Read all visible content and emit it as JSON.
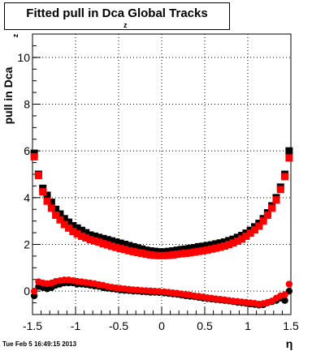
{
  "header": {
    "title": "Fitted pull in Dca",
    "title_sub": "z",
    "title_tail": " Global Tracks"
  },
  "footer": {
    "timestamp": "Tue Feb  5 16:49:15 2013"
  },
  "chart_data": {
    "type": "scatter",
    "title": "Fitted pull in Dca_z Global Tracks",
    "xlabel": "η",
    "ylabel": "pull in Dca",
    "ylabel_sub": "z",
    "xlim": [
      -1.5,
      1.5
    ],
    "ylim": [
      -1.0,
      11.0
    ],
    "x_ticks": [
      -1.5,
      -1,
      -0.5,
      0,
      0.5,
      1,
      1.5
    ],
    "x_tick_labels": [
      "-1.5",
      "-1",
      "-0.5",
      "0",
      "0.5",
      "1",
      "1.5"
    ],
    "y_ticks": [
      0,
      2,
      4,
      6,
      8,
      10
    ],
    "y_tick_labels": [
      "0",
      "2",
      "4",
      "6",
      "8",
      "10"
    ],
    "grid": true,
    "colors": {
      "black_series": "#000000",
      "red_series": "#ff0000"
    },
    "series": [
      {
        "marker": "square",
        "color": "#000000",
        "points": [
          [
            -1.48,
            5.9
          ],
          [
            -1.43,
            5.0
          ],
          [
            -1.38,
            4.4
          ],
          [
            -1.33,
            4.1
          ],
          [
            -1.28,
            3.8
          ],
          [
            -1.23,
            3.5
          ],
          [
            -1.18,
            3.3
          ],
          [
            -1.13,
            3.1
          ],
          [
            -1.08,
            2.95
          ],
          [
            -1.03,
            2.8
          ],
          [
            -0.98,
            2.7
          ],
          [
            -0.93,
            2.6
          ],
          [
            -0.88,
            2.5
          ],
          [
            -0.83,
            2.4
          ],
          [
            -0.78,
            2.35
          ],
          [
            -0.73,
            2.3
          ],
          [
            -0.68,
            2.25
          ],
          [
            -0.63,
            2.2
          ],
          [
            -0.58,
            2.15
          ],
          [
            -0.53,
            2.1
          ],
          [
            -0.48,
            2.05
          ],
          [
            -0.43,
            2.0
          ],
          [
            -0.38,
            1.95
          ],
          [
            -0.33,
            1.9
          ],
          [
            -0.28,
            1.85
          ],
          [
            -0.23,
            1.8
          ],
          [
            -0.18,
            1.75
          ],
          [
            -0.13,
            1.72
          ],
          [
            -0.08,
            1.7
          ],
          [
            -0.03,
            1.68
          ],
          [
            0.03,
            1.68
          ],
          [
            0.08,
            1.7
          ],
          [
            0.13,
            1.72
          ],
          [
            0.18,
            1.75
          ],
          [
            0.23,
            1.78
          ],
          [
            0.28,
            1.8
          ],
          [
            0.33,
            1.83
          ],
          [
            0.38,
            1.86
          ],
          [
            0.43,
            1.9
          ],
          [
            0.48,
            1.92
          ],
          [
            0.53,
            1.95
          ],
          [
            0.58,
            1.98
          ],
          [
            0.63,
            2.02
          ],
          [
            0.68,
            2.06
          ],
          [
            0.73,
            2.1
          ],
          [
            0.78,
            2.16
          ],
          [
            0.83,
            2.22
          ],
          [
            0.88,
            2.3
          ],
          [
            0.93,
            2.38
          ],
          [
            0.98,
            2.48
          ],
          [
            1.03,
            2.6
          ],
          [
            1.08,
            2.75
          ],
          [
            1.13,
            2.9
          ],
          [
            1.18,
            3.1
          ],
          [
            1.23,
            3.35
          ],
          [
            1.28,
            3.65
          ],
          [
            1.33,
            4.0
          ],
          [
            1.38,
            4.45
          ],
          [
            1.43,
            5.0
          ],
          [
            1.48,
            6.0
          ]
        ]
      },
      {
        "marker": "circle",
        "color": "#000000",
        "points": [
          [
            -1.48,
            -0.2
          ],
          [
            -1.43,
            0.2
          ],
          [
            -1.38,
            0.15
          ],
          [
            -1.33,
            0.1
          ],
          [
            -1.28,
            0.15
          ],
          [
            -1.23,
            0.25
          ],
          [
            -1.18,
            0.3
          ],
          [
            -1.13,
            0.35
          ],
          [
            -1.08,
            0.35
          ],
          [
            -1.03,
            0.35
          ],
          [
            -0.98,
            0.3
          ],
          [
            -0.93,
            0.3
          ],
          [
            -0.88,
            0.28
          ],
          [
            -0.83,
            0.25
          ],
          [
            -0.78,
            0.22
          ],
          [
            -0.73,
            0.2
          ],
          [
            -0.68,
            0.15
          ],
          [
            -0.63,
            0.12
          ],
          [
            -0.58,
            0.1
          ],
          [
            -0.53,
            0.08
          ],
          [
            -0.48,
            0.05
          ],
          [
            -0.43,
            0.03
          ],
          [
            -0.38,
            0.02
          ],
          [
            -0.33,
            0.0
          ],
          [
            -0.28,
            0.0
          ],
          [
            -0.23,
            -0.02
          ],
          [
            -0.18,
            -0.03
          ],
          [
            -0.13,
            -0.05
          ],
          [
            -0.08,
            -0.05
          ],
          [
            -0.03,
            -0.06
          ],
          [
            0.03,
            -0.08
          ],
          [
            0.08,
            -0.1
          ],
          [
            0.13,
            -0.12
          ],
          [
            0.18,
            -0.14
          ],
          [
            0.23,
            -0.17
          ],
          [
            0.28,
            -0.2
          ],
          [
            0.33,
            -0.22
          ],
          [
            0.38,
            -0.24
          ],
          [
            0.43,
            -0.27
          ],
          [
            0.48,
            -0.3
          ],
          [
            0.53,
            -0.32
          ],
          [
            0.58,
            -0.34
          ],
          [
            0.63,
            -0.36
          ],
          [
            0.68,
            -0.38
          ],
          [
            0.73,
            -0.4
          ],
          [
            0.78,
            -0.42
          ],
          [
            0.83,
            -0.45
          ],
          [
            0.88,
            -0.48
          ],
          [
            0.93,
            -0.5
          ],
          [
            0.98,
            -0.52
          ],
          [
            1.03,
            -0.55
          ],
          [
            1.08,
            -0.57
          ],
          [
            1.13,
            -0.6
          ],
          [
            1.18,
            -0.58
          ],
          [
            1.23,
            -0.5
          ],
          [
            1.28,
            -0.45
          ],
          [
            1.33,
            -0.4
          ],
          [
            1.38,
            -0.3
          ],
          [
            1.43,
            -0.4
          ],
          [
            1.48,
            0.0
          ]
        ]
      },
      {
        "marker": "square",
        "color": "#ff0000",
        "points": [
          [
            -1.48,
            5.75
          ],
          [
            -1.43,
            4.95
          ],
          [
            -1.38,
            4.25
          ],
          [
            -1.33,
            3.85
          ],
          [
            -1.28,
            3.55
          ],
          [
            -1.23,
            3.25
          ],
          [
            -1.18,
            3.05
          ],
          [
            -1.13,
            2.85
          ],
          [
            -1.08,
            2.7
          ],
          [
            -1.03,
            2.55
          ],
          [
            -0.98,
            2.45
          ],
          [
            -0.93,
            2.35
          ],
          [
            -0.88,
            2.28
          ],
          [
            -0.83,
            2.2
          ],
          [
            -0.78,
            2.15
          ],
          [
            -0.73,
            2.1
          ],
          [
            -0.68,
            2.03
          ],
          [
            -0.63,
            1.98
          ],
          [
            -0.58,
            1.92
          ],
          [
            -0.53,
            1.87
          ],
          [
            -0.48,
            1.82
          ],
          [
            -0.43,
            1.78
          ],
          [
            -0.38,
            1.73
          ],
          [
            -0.33,
            1.69
          ],
          [
            -0.28,
            1.65
          ],
          [
            -0.23,
            1.62
          ],
          [
            -0.18,
            1.58
          ],
          [
            -0.13,
            1.55
          ],
          [
            -0.08,
            1.53
          ],
          [
            -0.03,
            1.52
          ],
          [
            0.03,
            1.52
          ],
          [
            0.08,
            1.53
          ],
          [
            0.13,
            1.55
          ],
          [
            0.18,
            1.58
          ],
          [
            0.23,
            1.6
          ],
          [
            0.28,
            1.62
          ],
          [
            0.33,
            1.64
          ],
          [
            0.38,
            1.67
          ],
          [
            0.43,
            1.7
          ],
          [
            0.48,
            1.73
          ],
          [
            0.53,
            1.76
          ],
          [
            0.58,
            1.8
          ],
          [
            0.63,
            1.84
          ],
          [
            0.68,
            1.88
          ],
          [
            0.73,
            1.93
          ],
          [
            0.78,
            1.99
          ],
          [
            0.83,
            2.06
          ],
          [
            0.88,
            2.14
          ],
          [
            0.93,
            2.23
          ],
          [
            0.98,
            2.35
          ],
          [
            1.03,
            2.48
          ],
          [
            1.08,
            2.62
          ],
          [
            1.13,
            2.78
          ],
          [
            1.18,
            3.0
          ],
          [
            1.23,
            3.25
          ],
          [
            1.28,
            3.55
          ],
          [
            1.33,
            3.9
          ],
          [
            1.38,
            4.35
          ],
          [
            1.43,
            4.9
          ],
          [
            1.48,
            5.7
          ]
        ]
      },
      {
        "marker": "circle",
        "color": "#ff0000",
        "points": [
          [
            -1.48,
            0.0
          ],
          [
            -1.43,
            0.4
          ],
          [
            -1.38,
            0.35
          ],
          [
            -1.33,
            0.32
          ],
          [
            -1.28,
            0.35
          ],
          [
            -1.23,
            0.42
          ],
          [
            -1.18,
            0.45
          ],
          [
            -1.13,
            0.48
          ],
          [
            -1.08,
            0.48
          ],
          [
            -1.03,
            0.45
          ],
          [
            -0.98,
            0.42
          ],
          [
            -0.93,
            0.4
          ],
          [
            -0.88,
            0.37
          ],
          [
            -0.83,
            0.35
          ],
          [
            -0.78,
            0.32
          ],
          [
            -0.73,
            0.28
          ],
          [
            -0.68,
            0.25
          ],
          [
            -0.63,
            0.2
          ],
          [
            -0.58,
            0.17
          ],
          [
            -0.53,
            0.14
          ],
          [
            -0.48,
            0.12
          ],
          [
            -0.43,
            0.1
          ],
          [
            -0.38,
            0.08
          ],
          [
            -0.33,
            0.06
          ],
          [
            -0.28,
            0.05
          ],
          [
            -0.23,
            0.03
          ],
          [
            -0.18,
            0.02
          ],
          [
            -0.13,
            0.01
          ],
          [
            -0.08,
            0.0
          ],
          [
            -0.03,
            -0.01
          ],
          [
            0.03,
            -0.03
          ],
          [
            0.08,
            -0.05
          ],
          [
            0.13,
            -0.07
          ],
          [
            0.18,
            -0.09
          ],
          [
            0.23,
            -0.12
          ],
          [
            0.28,
            -0.14
          ],
          [
            0.33,
            -0.17
          ],
          [
            0.38,
            -0.2
          ],
          [
            0.43,
            -0.22
          ],
          [
            0.48,
            -0.25
          ],
          [
            0.53,
            -0.28
          ],
          [
            0.58,
            -0.3
          ],
          [
            0.63,
            -0.33
          ],
          [
            0.68,
            -0.35
          ],
          [
            0.73,
            -0.37
          ],
          [
            0.78,
            -0.4
          ],
          [
            0.83,
            -0.42
          ],
          [
            0.88,
            -0.44
          ],
          [
            0.93,
            -0.46
          ],
          [
            0.98,
            -0.48
          ],
          [
            1.03,
            -0.5
          ],
          [
            1.08,
            -0.52
          ],
          [
            1.13,
            -0.55
          ],
          [
            1.18,
            -0.53
          ],
          [
            1.23,
            -0.48
          ],
          [
            1.28,
            -0.42
          ],
          [
            1.33,
            -0.3
          ],
          [
            1.38,
            -0.2
          ],
          [
            1.43,
            -0.15
          ],
          [
            1.48,
            0.3
          ]
        ]
      }
    ]
  }
}
